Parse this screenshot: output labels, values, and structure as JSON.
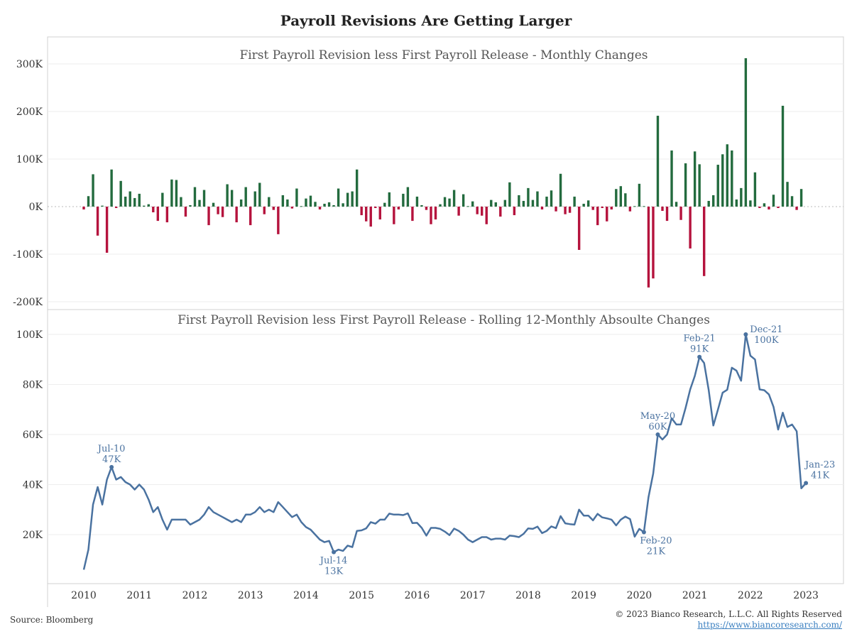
{
  "title": "Payroll Revisions Are Getting Larger",
  "footer": {
    "source": "Source: Bloomberg",
    "copyright": "© 2023 Bianco Research, L.L.C. All Rights Reserved",
    "url": "https://www.biancoresearch.com/"
  },
  "colors": {
    "positive": "#236b3e",
    "negative": "#b5133d",
    "line": "#4a72a0"
  },
  "chart_data": [
    {
      "type": "bar",
      "title": "First Payroll Revision less First Payroll Release - Monthly Changes",
      "x_start": "2010-01",
      "frequency": "monthly",
      "ylim": [
        -200,
        320
      ],
      "yticks": [
        -200,
        -100,
        0,
        100,
        200,
        300
      ],
      "ytick_labels": [
        "-200K",
        "-100K",
        "0K",
        "100K",
        "200K",
        "300K"
      ],
      "unit": "K",
      "values": [
        -6,
        22,
        68,
        -61,
        2,
        -97,
        78,
        -3,
        54,
        21,
        32,
        18,
        27,
        2,
        5,
        -12,
        -30,
        29,
        -33,
        57,
        56,
        20,
        -21,
        3,
        41,
        14,
        35,
        -39,
        8,
        -16,
        -22,
        47,
        35,
        -33,
        15,
        41,
        -39,
        32,
        50,
        -16,
        20,
        -7,
        -58,
        24,
        15,
        -4,
        38,
        1,
        17,
        23,
        10,
        -6,
        6,
        9,
        3,
        38,
        7,
        29,
        32,
        78,
        -18,
        -31,
        -42,
        -3,
        -27,
        8,
        30,
        -37,
        -6,
        27,
        41,
        -30,
        21,
        3,
        -7,
        -37,
        -27,
        5,
        20,
        17,
        35,
        -19,
        26,
        1,
        11,
        -16,
        -19,
        -37,
        14,
        9,
        -21,
        14,
        51,
        -18,
        24,
        12,
        39,
        14,
        32,
        -6,
        21,
        34,
        -10,
        69,
        -16,
        -13,
        21,
        -91,
        6,
        13,
        -7,
        -39,
        -3,
        -31,
        -6,
        37,
        43,
        28,
        -10,
        1,
        48,
        1,
        -170,
        -151,
        191,
        -9,
        -30,
        118,
        10,
        -28,
        91,
        -88,
        116,
        89,
        -146,
        12,
        24,
        88,
        110,
        131,
        118,
        15,
        39,
        312,
        13,
        72,
        -3,
        7,
        -6,
        25,
        -3,
        212,
        52,
        22,
        -7,
        37
      ]
    },
    {
      "type": "line",
      "title": "First Payroll Revision less First Payroll Release - Rolling 12-Monthly Absoulte Changes",
      "x_start": "2010-01",
      "frequency": "monthly",
      "ylim": [
        0,
        105
      ],
      "yticks": [
        20,
        40,
        60,
        80,
        100
      ],
      "ytick_labels": [
        "20K",
        "40K",
        "60K",
        "80K",
        "100K"
      ],
      "xtick_labels": [
        "2010",
        "2011",
        "2012",
        "2013",
        "2014",
        "2015",
        "2016",
        "2017",
        "2018",
        "2019",
        "2020",
        "2021",
        "2022",
        "2023"
      ],
      "unit": "K",
      "values": [
        6,
        14,
        32,
        39,
        32,
        42,
        47,
        42,
        43,
        41,
        40,
        38,
        40,
        38,
        34,
        29,
        31,
        26,
        22,
        26,
        26,
        26,
        26,
        24,
        25,
        26,
        28,
        31,
        29,
        28,
        27,
        26,
        25,
        26,
        25,
        28,
        28,
        29,
        31,
        29,
        30,
        29,
        33,
        31,
        29,
        27,
        28,
        25,
        23,
        22,
        20,
        18,
        17,
        17.5,
        13,
        14,
        13.5,
        15.6,
        15,
        21.5,
        21.7,
        22.5,
        25,
        24.4,
        26,
        26,
        28.4,
        28,
        28,
        27.8,
        28.5,
        24.6,
        24.7,
        22.7,
        19.6,
        22.7,
        22.7,
        22.3,
        21.2,
        19.8,
        22.4,
        21.5,
        20,
        18,
        17,
        18,
        19,
        19,
        18,
        18.4,
        18.4,
        18,
        19.6,
        19.4,
        19,
        20.3,
        22.5,
        22.3,
        23.2,
        20.6,
        21.5,
        23.3,
        22.6,
        27.4,
        24.5,
        24.2,
        24,
        30,
        27.6,
        27.6,
        25.7,
        28.3,
        26.9,
        26.5,
        26,
        23.7,
        26,
        27.2,
        26.2,
        19.2,
        22.3,
        21,
        35,
        44.4,
        60,
        58,
        60,
        66.5,
        64,
        64,
        70.6,
        78,
        83.4,
        91,
        88.6,
        77.7,
        63.6,
        70,
        76.7,
        77.9,
        86.7,
        85.5,
        81.5,
        100,
        91.5,
        90,
        78,
        77.7,
        76,
        71,
        62,
        68.7,
        63,
        64,
        61.3,
        38.5,
        40.6
      ],
      "annotations": [
        {
          "index": 6,
          "label": "Jul-10",
          "value_label": "47K",
          "pos": "above"
        },
        {
          "index": 54,
          "label": "Jul-14",
          "value_label": "13K",
          "pos": "below"
        },
        {
          "index": 121,
          "label": "Feb-20",
          "value_label": "21K",
          "pos": "below"
        },
        {
          "index": 124,
          "label": "May-20",
          "value_label": "60K",
          "pos": "above"
        },
        {
          "index": 133,
          "label": "Feb-21",
          "value_label": "91K",
          "pos": "above"
        },
        {
          "index": 143,
          "label": "Dec-21",
          "value_label": "100K",
          "pos": "right"
        },
        {
          "index": 156,
          "label": "Jan-23",
          "value_label": "41K",
          "pos": "above-right"
        }
      ]
    }
  ]
}
